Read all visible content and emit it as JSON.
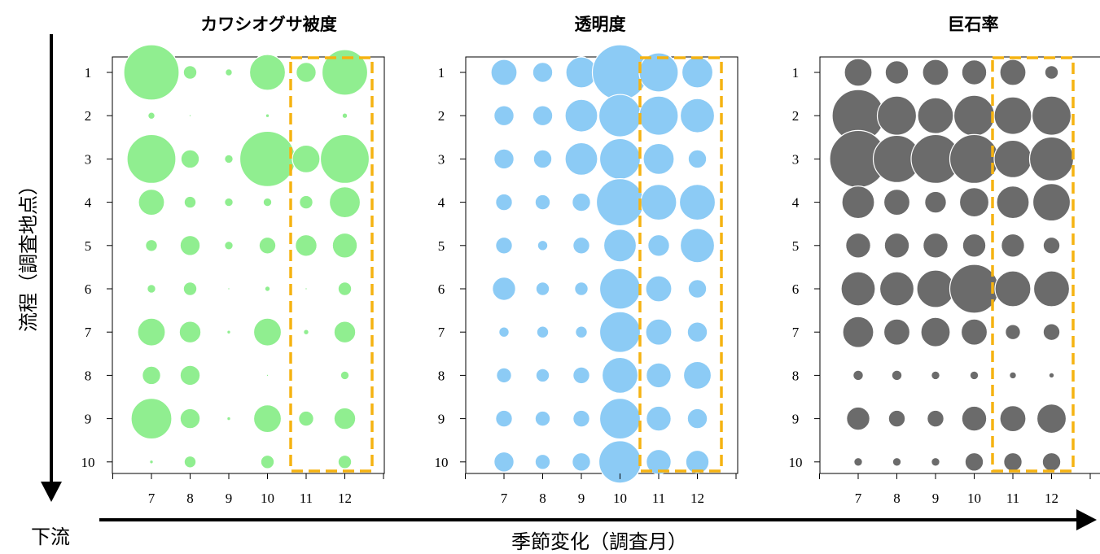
{
  "y_axis": {
    "label": "流程（調査地点）",
    "end_label": "下流"
  },
  "x_axis": {
    "label": "季節変化（調査月）"
  },
  "colors": {
    "kawashiogusa": "#90ee90",
    "transparency": "#8ccbf5",
    "boulder": "#6b6b6b",
    "highlight": "#f5b312"
  },
  "chart_data": [
    {
      "type": "scatter",
      "title": "カワシオグサ被度",
      "x_ticks": [
        7,
        8,
        9,
        10,
        11,
        12
      ],
      "y_ticks": [
        1,
        2,
        3,
        4,
        5,
        6,
        7,
        8,
        9,
        10
      ],
      "marker_color": "#90ee90",
      "highlight_months": [
        11,
        12
      ],
      "values": [
        [
          34,
          8,
          4,
          22,
          12,
          28
        ],
        [
          4,
          1,
          0,
          2,
          0,
          3
        ],
        [
          30,
          11,
          5,
          34,
          17,
          30
        ],
        [
          16,
          7,
          5,
          5,
          8,
          19
        ],
        [
          7,
          12,
          5,
          10,
          13,
          15
        ],
        [
          5,
          8,
          1,
          3,
          1,
          8
        ],
        [
          17,
          13,
          2,
          17,
          3,
          13
        ],
        [
          11,
          12,
          0,
          1,
          0,
          5
        ],
        [
          25,
          12,
          2,
          17,
          9,
          13
        ],
        [
          2,
          7,
          0,
          8,
          0,
          8
        ]
      ]
    },
    {
      "type": "scatter",
      "title": "透明度",
      "x_ticks": [
        7,
        8,
        9,
        10,
        11,
        12
      ],
      "y_ticks": [
        1,
        2,
        3,
        4,
        5,
        6,
        7,
        8,
        9,
        10
      ],
      "marker_color": "#8ccbf5",
      "highlight_months": [
        11,
        12
      ],
      "values": [
        [
          16,
          12,
          19,
          34,
          24,
          19
        ],
        [
          12,
          12,
          20,
          26,
          24,
          21
        ],
        [
          12,
          11,
          20,
          25,
          19,
          11
        ],
        [
          10,
          9,
          11,
          29,
          22,
          22
        ],
        [
          10,
          6,
          10,
          20,
          13,
          21
        ],
        [
          14,
          8,
          8,
          25,
          16,
          11
        ],
        [
          6,
          7,
          7,
          25,
          16,
          12
        ],
        [
          9,
          8,
          10,
          22,
          15,
          17
        ],
        [
          10,
          9,
          10,
          25,
          15,
          12
        ],
        [
          12,
          9,
          11,
          26,
          15,
          14
        ]
      ]
    },
    {
      "type": "scatter",
      "title": "巨石率",
      "x_ticks": [
        7,
        8,
        9,
        10,
        11,
        12
      ],
      "y_ticks": [
        1,
        2,
        3,
        4,
        5,
        6,
        7,
        8,
        9,
        10
      ],
      "marker_color": "#6b6b6b",
      "highlight_months": [
        11,
        12
      ],
      "values": [
        [
          17,
          14,
          16,
          15,
          16,
          8
        ],
        [
          32,
          24,
          22,
          25,
          23,
          24
        ],
        [
          35,
          29,
          30,
          30,
          23,
          27
        ],
        [
          20,
          16,
          13,
          18,
          20,
          23
        ],
        [
          15,
          15,
          15,
          14,
          14,
          10
        ],
        [
          21,
          21,
          23,
          30,
          22,
          22
        ],
        [
          19,
          16,
          18,
          16,
          9,
          10
        ],
        [
          6,
          6,
          5,
          5,
          4,
          3
        ],
        [
          14,
          10,
          10,
          15,
          16,
          18
        ],
        [
          5,
          5,
          5,
          11,
          11,
          11
        ]
      ]
    }
  ]
}
